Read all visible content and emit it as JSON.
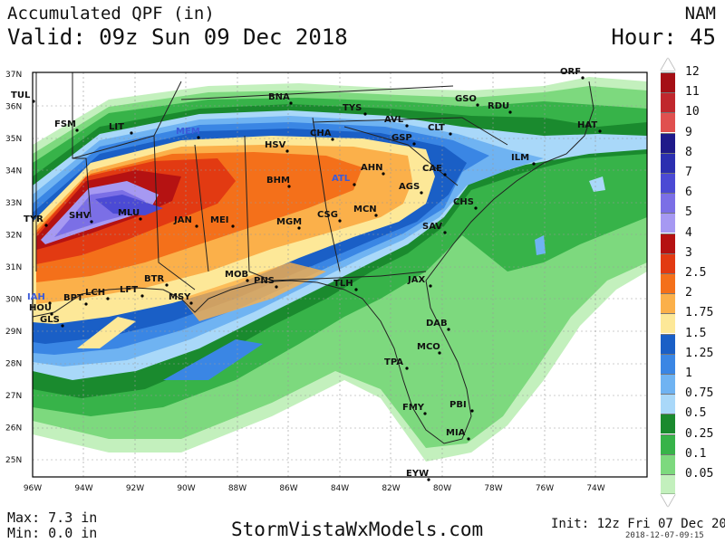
{
  "header": {
    "title": "Accumulated QPF (in)",
    "valid": "Valid: 09z Sun 09 Dec 2018",
    "model": "NAM",
    "hour": "Hour: 45"
  },
  "footer": {
    "max": "Max: 7.3 in",
    "min": "Min: 0.0 in",
    "site": "StormVistaWxModels.com",
    "init": "Init: 12z Fri 07 Dec 2018",
    "stamp": "2018-12-07-09:15"
  },
  "axes": {
    "lat_ticks": [
      "37N",
      "36N",
      "35N",
      "34N",
      "33N",
      "32N",
      "31N",
      "30N",
      "29N",
      "28N",
      "27N",
      "26N",
      "25N"
    ],
    "lon_ticks": [
      "96W",
      "94W",
      "92W",
      "90W",
      "88W",
      "86W",
      "84W",
      "82W",
      "80W",
      "78W",
      "76W",
      "74W"
    ]
  },
  "legend": [
    {
      "label": "12",
      "color": "#a50f15"
    },
    {
      "label": "11",
      "color": "#c0272d"
    },
    {
      "label": "10",
      "color": "#e0504f"
    },
    {
      "label": "9",
      "color": "#1f1a8a"
    },
    {
      "label": "8",
      "color": "#2b2fb0"
    },
    {
      "label": "7",
      "color": "#4b4ad4"
    },
    {
      "label": "6",
      "color": "#7b6fe6"
    },
    {
      "label": "5",
      "color": "#a699f2"
    },
    {
      "label": "4",
      "color": "#b51212"
    },
    {
      "label": "3",
      "color": "#e23a12"
    },
    {
      "label": "2.5",
      "color": "#f4701a"
    },
    {
      "label": "2",
      "color": "#fbb04a"
    },
    {
      "label": "1.75",
      "color": "#fde898"
    },
    {
      "label": "1.5",
      "color": "#1a5fc6"
    },
    {
      "label": "1.25",
      "color": "#3a86e4"
    },
    {
      "label": "1",
      "color": "#6fb3f2"
    },
    {
      "label": "0.75",
      "color": "#a9d8f9"
    },
    {
      "label": "0.5",
      "color": "#1a8a2e"
    },
    {
      "label": "0.25",
      "color": "#37b349"
    },
    {
      "label": "0.1",
      "color": "#7dd97e"
    },
    {
      "label": "0.05",
      "color": "#c3f0bd"
    }
  ],
  "cities": [
    {
      "name": "TUL",
      "color": "#111111"
    },
    {
      "name": "FSM",
      "color": "#111111"
    },
    {
      "name": "LIT",
      "color": "#111111"
    },
    {
      "name": "MEM",
      "color": "#3b5bd9"
    },
    {
      "name": "BNA",
      "color": "#111111"
    },
    {
      "name": "TYS",
      "color": "#111111"
    },
    {
      "name": "AVL",
      "color": "#111111"
    },
    {
      "name": "CLT",
      "color": "#111111"
    },
    {
      "name": "GSO",
      "color": "#111111"
    },
    {
      "name": "RDU",
      "color": "#111111"
    },
    {
      "name": "ORF",
      "color": "#111111"
    },
    {
      "name": "HAT",
      "color": "#111111"
    },
    {
      "name": "CHA",
      "color": "#111111"
    },
    {
      "name": "GSP",
      "color": "#111111"
    },
    {
      "name": "HSV",
      "color": "#111111"
    },
    {
      "name": "ATL",
      "color": "#3b5bd9"
    },
    {
      "name": "AHN",
      "color": "#111111"
    },
    {
      "name": "CAE",
      "color": "#111111"
    },
    {
      "name": "ILM",
      "color": "#111111"
    },
    {
      "name": "BHM",
      "color": "#111111"
    },
    {
      "name": "AGS",
      "color": "#111111"
    },
    {
      "name": "CHS",
      "color": "#111111"
    },
    {
      "name": "TYR",
      "color": "#111111"
    },
    {
      "name": "SHV",
      "color": "#111111"
    },
    {
      "name": "MLU",
      "color": "#111111"
    },
    {
      "name": "JAN",
      "color": "#111111"
    },
    {
      "name": "MEI",
      "color": "#111111"
    },
    {
      "name": "MGM",
      "color": "#111111"
    },
    {
      "name": "CSG",
      "color": "#111111"
    },
    {
      "name": "MCN",
      "color": "#111111"
    },
    {
      "name": "SAV",
      "color": "#111111"
    },
    {
      "name": "BTR",
      "color": "#111111"
    },
    {
      "name": "MOB",
      "color": "#111111"
    },
    {
      "name": "PNS",
      "color": "#111111"
    },
    {
      "name": "TLH",
      "color": "#111111"
    },
    {
      "name": "JAX",
      "color": "#111111"
    },
    {
      "name": "IAH",
      "color": "#3b5bd9"
    },
    {
      "name": "BPT",
      "color": "#111111"
    },
    {
      "name": "LCH",
      "color": "#111111"
    },
    {
      "name": "LFT",
      "color": "#111111"
    },
    {
      "name": "MSY",
      "color": "#111111"
    },
    {
      "name": "HOU",
      "color": "#111111"
    },
    {
      "name": "GLS",
      "color": "#111111"
    },
    {
      "name": "DAB",
      "color": "#111111"
    },
    {
      "name": "MCO",
      "color": "#111111"
    },
    {
      "name": "TPA",
      "color": "#111111"
    },
    {
      "name": "FMY",
      "color": "#111111"
    },
    {
      "name": "PBI",
      "color": "#111111"
    },
    {
      "name": "MIA",
      "color": "#111111"
    },
    {
      "name": "EYW",
      "color": "#111111"
    }
  ]
}
